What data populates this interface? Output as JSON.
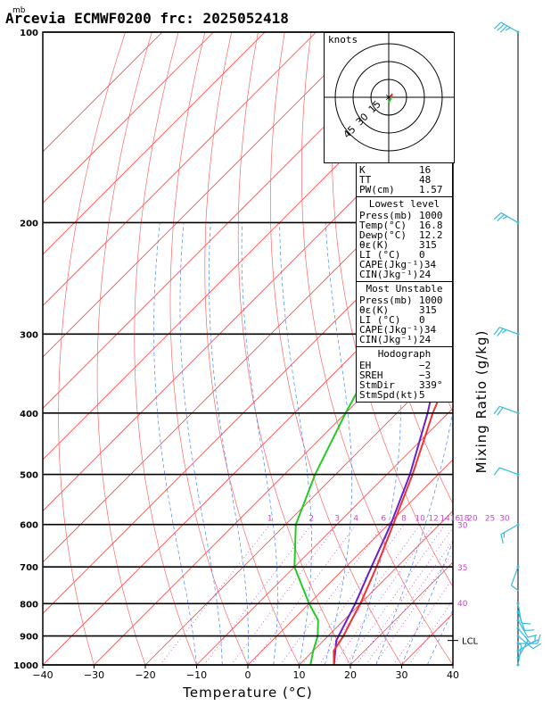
{
  "title": "Arcevia ECMWF0200  frc: 2025052418",
  "chart_data": {
    "type": "skew-t",
    "xlabel": "Temperature (°C)",
    "ylabel_right": "Mixing Ratio (g/kg)",
    "pressure_unit": "mb",
    "xlim": [
      -40,
      40
    ],
    "ylim": [
      1000,
      100
    ],
    "x_ticks": [
      -40,
      -30,
      -20,
      -10,
      0,
      10,
      20,
      30,
      40
    ],
    "pressure_ticks": [
      1000,
      900,
      800,
      700,
      600,
      500,
      400,
      300,
      200,
      100
    ],
    "mixing_ratio_labels": [
      "1",
      "2",
      "3",
      "4",
      "6",
      "8",
      "10",
      "12",
      "14",
      "16",
      "18",
      "20",
      "25",
      "30"
    ],
    "mixing_ratio_values": [
      1,
      2,
      3,
      4,
      6,
      8,
      10,
      12,
      14,
      16,
      18,
      20,
      25,
      30
    ],
    "theta_e_labels": [
      "30",
      "35",
      "40"
    ],
    "lcl_label": "LCL",
    "lcl_pressure": 915,
    "temperature": [
      [
        1000,
        16.8
      ],
      [
        950,
        14
      ],
      [
        900,
        13
      ],
      [
        850,
        11.5
      ],
      [
        800,
        10
      ],
      [
        700,
        6
      ],
      [
        600,
        1
      ],
      [
        500,
        -5
      ],
      [
        400,
        -13
      ],
      [
        300,
        -22
      ],
      [
        250,
        -25
      ],
      [
        200,
        -14
      ],
      [
        150,
        3
      ],
      [
        100,
        30
      ]
    ],
    "dewpoint": [
      [
        1000,
        12.2
      ],
      [
        950,
        10
      ],
      [
        900,
        8
      ],
      [
        850,
        5
      ],
      [
        800,
        0
      ],
      [
        700,
        -10
      ],
      [
        600,
        -18
      ],
      [
        500,
        -24
      ],
      [
        400,
        -30
      ],
      [
        300,
        -37
      ],
      [
        250,
        -41
      ],
      [
        200,
        -37
      ],
      [
        150,
        -33
      ],
      [
        100,
        -30
      ]
    ],
    "parcel": [
      [
        1000,
        16.8
      ],
      [
        915,
        12.5
      ],
      [
        800,
        9
      ],
      [
        700,
        5
      ],
      [
        600,
        0.5
      ],
      [
        500,
        -5.5
      ],
      [
        400,
        -14
      ],
      [
        300,
        -26
      ],
      [
        200,
        -42
      ],
      [
        150,
        -53
      ],
      [
        100,
        -60
      ]
    ],
    "winds": [
      [
        1000,
        10,
        3
      ],
      [
        975,
        30,
        5
      ],
      [
        950,
        60,
        5
      ],
      [
        925,
        90,
        8
      ],
      [
        900,
        130,
        8
      ],
      [
        875,
        140,
        10
      ],
      [
        850,
        150,
        10
      ],
      [
        825,
        160,
        10
      ],
      [
        800,
        170,
        12
      ],
      [
        700,
        200,
        12
      ],
      [
        600,
        240,
        15
      ],
      [
        500,
        290,
        12
      ],
      [
        400,
        290,
        20
      ],
      [
        300,
        290,
        25
      ],
      [
        200,
        300,
        25
      ],
      [
        100,
        300,
        35
      ]
    ]
  },
  "hodograph": {
    "title": "knots",
    "ring_labels": [
      "15",
      "30",
      "45"
    ],
    "ring_values": [
      15,
      30,
      45
    ]
  },
  "indices": [
    {
      "label": "K",
      "value": "16"
    },
    {
      "label": "TT",
      "value": "48"
    },
    {
      "label": "PW(cm)",
      "value": "1.57"
    }
  ],
  "lowest_level": {
    "title": "Lowest level",
    "rows": [
      {
        "label": "Press(mb)",
        "value": "1000"
      },
      {
        "label": "Temp(°C)",
        "value": "16.8"
      },
      {
        "label": "Dewp(°C)",
        "value": "12.2"
      },
      {
        "label": "θε(K)",
        "value": "315"
      },
      {
        "label": "LI (°C)",
        "value": "0"
      },
      {
        "label": "CAPE(Jkg⁻¹)",
        "value": "34"
      },
      {
        "label": "CIN(Jkg⁻¹)",
        "value": "24"
      }
    ]
  },
  "most_unstable": {
    "title": "Most Unstable",
    "rows": [
      {
        "label": "Press(mb)",
        "value": "1000"
      },
      {
        "label": "θε(K)",
        "value": "315"
      },
      {
        "label": "LI (°C)",
        "value": "0"
      },
      {
        "label": "CAPE(Jkg⁻¹)",
        "value": "34"
      },
      {
        "label": "CIN(Jkg⁻¹)",
        "value": "24"
      }
    ]
  },
  "hodograph_params": {
    "title": "Hodograph",
    "rows": [
      {
        "label": "EH",
        "value": "−2"
      },
      {
        "label": "SREH",
        "value": "−3"
      },
      {
        "label": "",
        "value": ""
      },
      {
        "label": "StmDir",
        "value": "339°"
      },
      {
        "label": "StmSpd(kt)",
        "value": "5"
      }
    ]
  },
  "colors": {
    "isotherm": "#ff4444",
    "dry_adiabat": "#ff6666",
    "moist_adiabat": "#4488ff",
    "mixing_ratio": "#cc44cc",
    "temperature": "#ee3333",
    "dewpoint": "#22cc22",
    "parcel": "#6622cc",
    "barb": "#33bbdd",
    "grid": "#999999"
  }
}
